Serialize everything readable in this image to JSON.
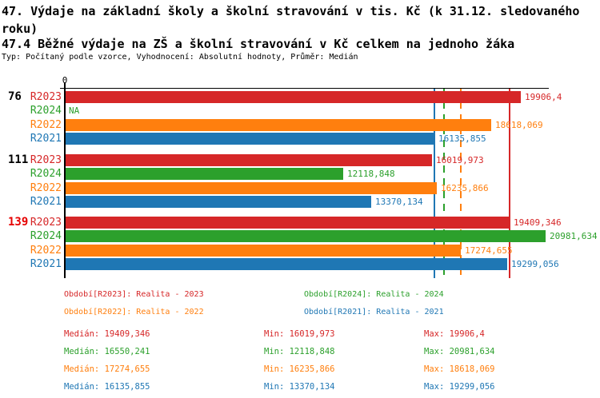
{
  "header": {
    "title": "47. Výdaje na základní školy a školní stravování v tis. Kč (k 31.12. sledovaného roku)",
    "subtitle": "47.4 Běžné výdaje na ZŠ a školní stravování v Kč celkem na jednoho žáka",
    "meta": "Typ: Počítaný podle vzorce, Vyhodnocení: Absolutní hodnoty, Průměr: Medián"
  },
  "chart_data": {
    "type": "bar",
    "orientation": "horizontal",
    "value_axis": {
      "zero_label": "0",
      "position": "top"
    },
    "na_text": "NA",
    "highlight_color": "#e60000",
    "series": [
      {
        "key": "R2023",
        "label": "R2023",
        "color": "#d62728",
        "legend": "Období[R2023]: Realita - 2023",
        "median_line_style": "solid"
      },
      {
        "key": "R2024",
        "label": "R2024",
        "color": "#2ca02c",
        "legend": "Období[R2024]: Realita - 2024",
        "median_line_style": "dashed"
      },
      {
        "key": "R2022",
        "label": "R2022",
        "color": "#ff7f0e",
        "legend": "Období[R2022]: Realita - 2022",
        "median_line_style": "dashed"
      },
      {
        "key": "R2021",
        "label": "R2021",
        "color": "#1f77b4",
        "legend": "Období[R2021]: Realita - 2021",
        "median_line_style": "solid"
      }
    ],
    "row_order": [
      "R2023",
      "R2024",
      "R2022",
      "R2021"
    ],
    "groups": [
      {
        "label": "76",
        "highlight": false,
        "values": {
          "R2023": "19906,4",
          "R2024": "NA",
          "R2022": "18618,069",
          "R2021": "16135,855"
        }
      },
      {
        "label": "111",
        "highlight": false,
        "values": {
          "R2023": "16019,973",
          "R2024": "12118,848",
          "R2022": "16235,866",
          "R2021": "13370,134"
        }
      },
      {
        "label": "139",
        "highlight": true,
        "values": {
          "R2023": "19409,346",
          "R2024": "20981,634",
          "R2022": "17274,655",
          "R2021": "19299,056"
        }
      }
    ],
    "medians": {
      "R2023": "19409,346",
      "R2024": "16550,241",
      "R2022": "17274,655",
      "R2021": "16135,855"
    }
  },
  "legend_order": [
    "R2023",
    "R2024",
    "R2022",
    "R2021"
  ],
  "stats": {
    "median_label": "Medián",
    "min_label": "Min",
    "max_label": "Max",
    "rows": [
      {
        "series": "R2023",
        "median": "19409,346",
        "min": "16019,973",
        "max": "19906,4"
      },
      {
        "series": "R2024",
        "median": "16550,241",
        "min": "12118,848",
        "max": "20981,634"
      },
      {
        "series": "R2022",
        "median": "17274,655",
        "min": "16235,866",
        "max": "18618,069"
      },
      {
        "series": "R2021",
        "median": "16135,855",
        "min": "13370,134",
        "max": "19299,056"
      }
    ]
  }
}
